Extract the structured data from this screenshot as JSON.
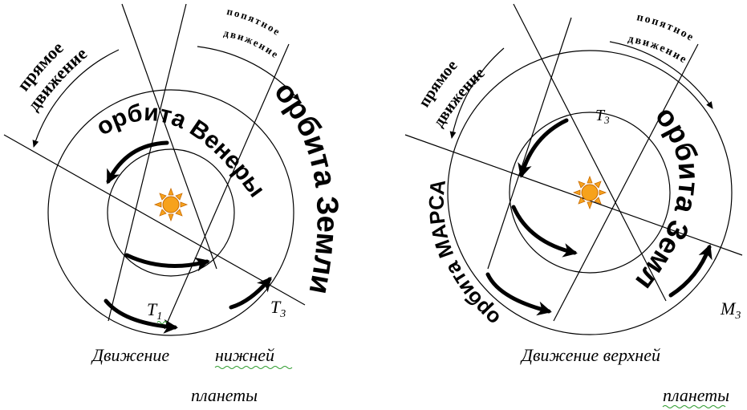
{
  "left_panel": {
    "prograde_line1": "прямое",
    "prograde_line2": "движение",
    "retrograde_line1": "попятное",
    "retrograde_line2": "движение",
    "venus_orbit": "орбита Венеры",
    "earth_orbit": "орбита Земли",
    "point_t1": "T",
    "point_t1_sub": "1",
    "point_t3": "T",
    "point_t3_sub": "3",
    "caption_line1a": "Движение",
    "caption_line1b": "нижней",
    "caption_line2": "планеты"
  },
  "right_panel": {
    "prograde_line1": "прямое",
    "prograde_line2": "движение",
    "retrograde_line1": "попятное",
    "retrograde_line2": "движение",
    "mars_orbit": "орбита МАРСА",
    "earth_orbit": "орбита Земли",
    "point_t3": "T",
    "point_t3_sub": "3",
    "point_m3": "M",
    "point_m3_sub": "3",
    "caption_line1": "Движение верхней",
    "caption_line2": "планеты"
  },
  "colors": {
    "sun_fill": "#f7a21c",
    "sun_stroke": "#c86a00",
    "ink": "#000000",
    "spellcheck": "#2b9a2b"
  },
  "icons": {
    "sun": "sun-icon"
  }
}
